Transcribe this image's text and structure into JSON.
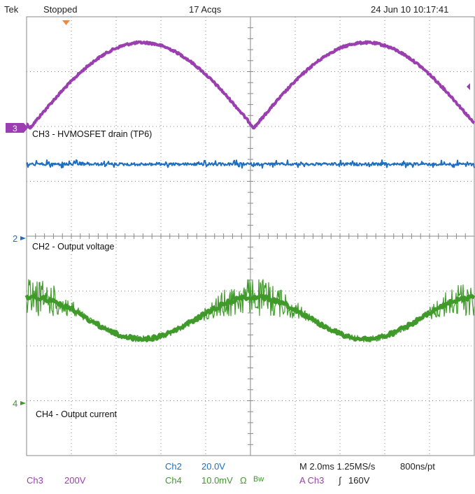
{
  "header": {
    "brand": "Tek",
    "status": "Stopped",
    "acqs": "17 Acqs",
    "datetime": "24 Jun 10 10:17:41"
  },
  "traces": {
    "ch3_label": "CH3 - HVMOSFET drain (TP6)",
    "ch2_label": "CH2 - Output voltage",
    "ch4_label": "CH4 - Output current",
    "ch3_marker": "3",
    "ch2_marker": "2",
    "ch4_marker": "4"
  },
  "colors": {
    "ch3": "#9b3fb0",
    "ch2": "#1f6fc0",
    "ch4": "#3f9a2a",
    "grid": "#8a8a8a",
    "trigger": "#f08a3a"
  },
  "footer": {
    "ch3_name": "Ch3",
    "ch3_scale": "200V",
    "ch2_name": "Ch2",
    "ch2_scale": "20.0V",
    "ch4_name": "Ch4",
    "ch4_scale": "10.0mV",
    "ohm": "Ω",
    "bw": "Bw",
    "timebase": "M 2.0ms 1.25MS/s",
    "record": "800ns/pt",
    "trig_source": "A  Ch3",
    "trig_slope": "∫",
    "trig_level": "160V"
  },
  "chart_data": {
    "type": "line",
    "title": "",
    "grid": true,
    "divisions": {
      "x": 10,
      "y": 8
    },
    "series": [
      {
        "name": "CH3 - HVMOSFET drain (TP6)",
        "unit": "V",
        "scale_per_div": 200,
        "shape": "rectified sine",
        "period_divisions": 5,
        "peak_divisions": 2.4
      },
      {
        "name": "CH2 - Output voltage",
        "unit": "V",
        "scale_per_div": 20.0,
        "shape": "flat with noise"
      },
      {
        "name": "CH4 - Output current",
        "unit": "mV",
        "scale_per_div": 10.0,
        "shape": "sine with high-frequency ripple",
        "period_divisions": 5,
        "amplitude_divisions": 0.5
      }
    ]
  }
}
